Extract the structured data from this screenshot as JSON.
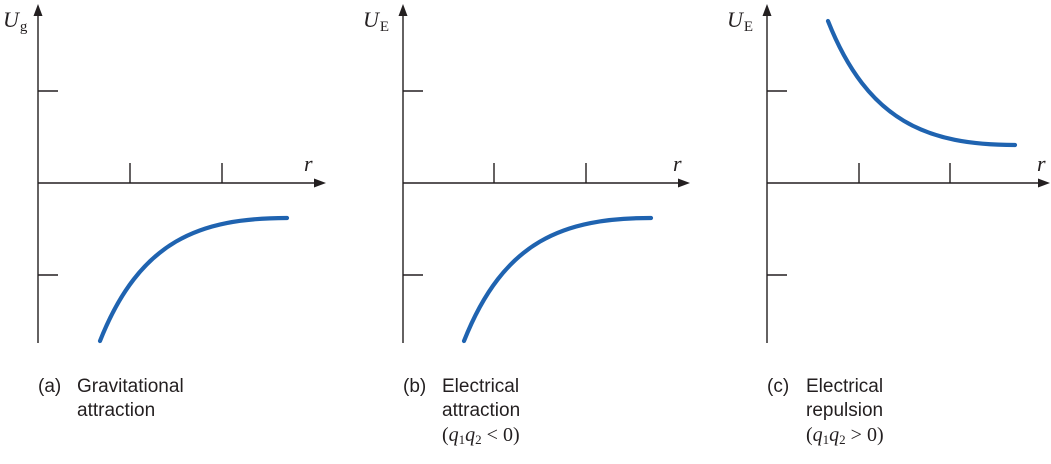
{
  "panels": [
    {
      "id": "a",
      "y_axis_symbol": "U",
      "y_axis_subscript": "g",
      "x_axis_label": "r",
      "caption_letter": "(a)",
      "caption_line1": "Gravitational",
      "caption_line2": "attraction",
      "curve": "negative, approaching zero as r increases",
      "curve_color": "#1f63b0"
    },
    {
      "id": "b",
      "y_axis_symbol": "U",
      "y_axis_subscript": "E",
      "x_axis_label": "r",
      "caption_letter": "(b)",
      "caption_line1": "Electrical",
      "caption_line2": "attraction",
      "condition": {
        "open": "(",
        "q1": "q",
        "s1": "1",
        "q2": "q",
        "s2": "2",
        "rel": " < 0)"
      },
      "curve": "negative, approaching zero as r increases",
      "curve_color": "#1f63b0"
    },
    {
      "id": "c",
      "y_axis_symbol": "U",
      "y_axis_subscript": "E",
      "x_axis_label": "r",
      "caption_letter": "(c)",
      "caption_line1": "Electrical",
      "caption_line2": "repulsion",
      "condition": {
        "open": "(",
        "q1": "q",
        "s1": "1",
        "q2": "q",
        "s2": "2",
        "rel": " > 0)"
      },
      "curve": "positive, approaching zero as r increases",
      "curve_color": "#1f63b0"
    }
  ]
}
